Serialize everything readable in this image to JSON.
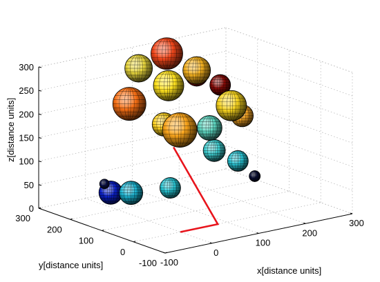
{
  "chart_data": {
    "type": "scatter3d",
    "title": "",
    "xlabel": "x[distance units]",
    "ylabel": "y[distance units]",
    "zlabel": "z[distance units]",
    "xlim": [
      -100,
      300
    ],
    "ylim": [
      -100,
      300
    ],
    "zlim": [
      0,
      300
    ],
    "xticks": [
      "-100",
      "0",
      "100",
      "200",
      "300"
    ],
    "yticks": [
      "-100",
      "0",
      "100",
      "200",
      "300"
    ],
    "zticks": [
      "0",
      "50",
      "100",
      "150",
      "200",
      "250",
      "300"
    ],
    "grid": true,
    "colormap": "jet",
    "spheres": [
      {
        "x": 20,
        "y": 250,
        "z": 20,
        "r": 17,
        "color": "#0a1fc8"
      },
      {
        "x": 50,
        "y": 230,
        "z": 18,
        "r": 17,
        "color": "#1ab4d2"
      },
      {
        "x": 0,
        "y": 240,
        "z": 45,
        "r": 7,
        "color": "#0c1660"
      },
      {
        "x": 100,
        "y": 180,
        "z": 30,
        "r": 15,
        "color": "#27c6d4"
      },
      {
        "x": 240,
        "y": 120,
        "z": 40,
        "r": 8,
        "color": "#0a1040"
      },
      {
        "x": 150,
        "y": 40,
        "z": 110,
        "r": 15,
        "color": "#28c8d8"
      },
      {
        "x": 140,
        "y": 100,
        "z": 120,
        "r": 16,
        "color": "#3ccccf"
      },
      {
        "x": 100,
        "y": 200,
        "z": 160,
        "r": 17,
        "color": "#ffd21e"
      },
      {
        "x": 60,
        "y": 250,
        "z": 200,
        "r": 24,
        "color": "#f56e14"
      },
      {
        "x": 100,
        "y": 150,
        "z": 160,
        "r": 25,
        "color": "#f8a31a"
      },
      {
        "x": 130,
        "y": 100,
        "z": 170,
        "r": 18,
        "color": "#5cd6c0"
      },
      {
        "x": 220,
        "y": 130,
        "z": 170,
        "r": 16,
        "color": "#f5a524"
      },
      {
        "x": 190,
        "y": 120,
        "z": 200,
        "r": 22,
        "color": "#f4d11e"
      },
      {
        "x": 100,
        "y": 280,
        "z": 260,
        "r": 20,
        "color": "#e8d63c"
      },
      {
        "x": 110,
        "y": 200,
        "z": 240,
        "r": 22,
        "color": "#ffe21e"
      },
      {
        "x": 170,
        "y": 200,
        "z": 260,
        "r": 20,
        "color": "#f3b01e"
      },
      {
        "x": 170,
        "y": 200,
        "z": 250,
        "r": 16,
        "color": "#cc1a0a"
      },
      {
        "x": 200,
        "y": 170,
        "z": 230,
        "r": 15,
        "color": "#8a0a06"
      },
      {
        "x": 140,
        "y": 250,
        "z": 290,
        "r": 23,
        "color": "#f0461a"
      }
    ],
    "path": [
      {
        "x": 0,
        "y": 0,
        "z": 0
      },
      {
        "x": 80,
        "y": 0,
        "z": 0
      },
      {
        "x": 80,
        "y": 140,
        "z": 130
      }
    ],
    "path_color": "#e8141c"
  }
}
